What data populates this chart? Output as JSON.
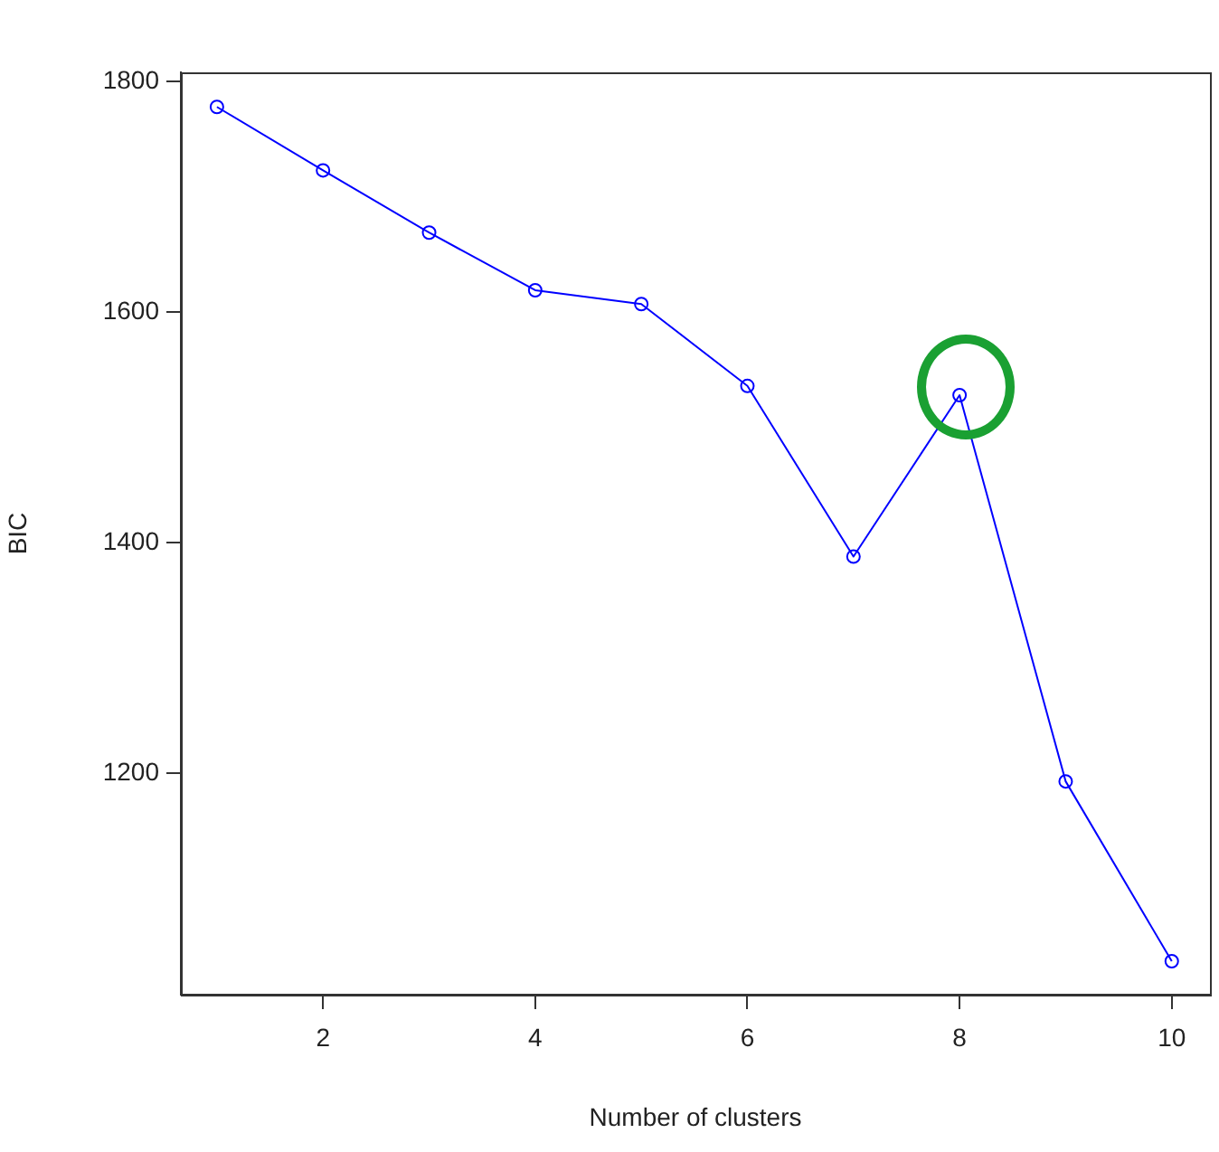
{
  "chart_data": {
    "type": "line",
    "xlabel": "Number of clusters",
    "ylabel": "BIC",
    "x": [
      1,
      2,
      3,
      4,
      5,
      6,
      7,
      8,
      9,
      10
    ],
    "series": [
      {
        "color": "#0000ff",
        "values": [
          1778,
          1723,
          1669,
          1619,
          1607,
          1536,
          1388,
          1528,
          1193,
          1037
        ]
      }
    ],
    "xlim": [
      0.66,
      10.36
    ],
    "xticks": [
      2,
      4,
      6,
      8,
      10
    ],
    "ylim": [
      1008,
      1808
    ],
    "yticks": [
      1200,
      1400,
      1600,
      1800
    ],
    "grid": false,
    "legend": false,
    "marker": "circle",
    "line_style": "solid"
  }
}
